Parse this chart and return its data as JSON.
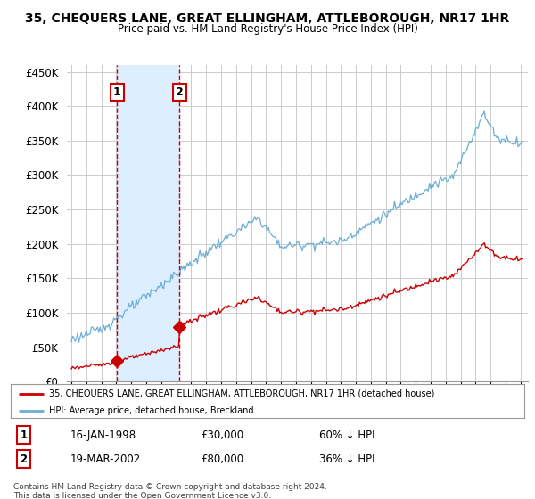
{
  "title": "35, CHEQUERS LANE, GREAT ELLINGHAM, ATTLEBOROUGH, NR17 1HR",
  "subtitle": "Price paid vs. HM Land Registry's House Price Index (HPI)",
  "ylim": [
    0,
    460000
  ],
  "yticks": [
    0,
    50000,
    100000,
    150000,
    200000,
    250000,
    300000,
    350000,
    400000,
    450000
  ],
  "xlim_start": 1994.7,
  "xlim_end": 2025.5,
  "transactions": [
    {
      "label": "1",
      "date_num": 1998.04,
      "price": 30000,
      "pct": "60% ↓ HPI",
      "date_str": "16-JAN-1998"
    },
    {
      "label": "2",
      "date_num": 2002.21,
      "price": 80000,
      "pct": "36% ↓ HPI",
      "date_str": "19-MAR-2002"
    }
  ],
  "hpi_line_color": "#6baed6",
  "price_line_color": "#cc0000",
  "transaction_vline_color": "#cc0000",
  "shade_color": "#ddeeff",
  "grid_color": "#cccccc",
  "background_color": "#ffffff",
  "legend_box_color": "#cc0000",
  "footer_text": "Contains HM Land Registry data © Crown copyright and database right 2024.\nThis data is licensed under the Open Government Licence v3.0.",
  "hpi_label": "HPI: Average price, detached house, Breckland",
  "price_label": "35, CHEQUERS LANE, GREAT ELLINGHAM, ATTLEBOROUGH, NR17 1HR (detached house)"
}
